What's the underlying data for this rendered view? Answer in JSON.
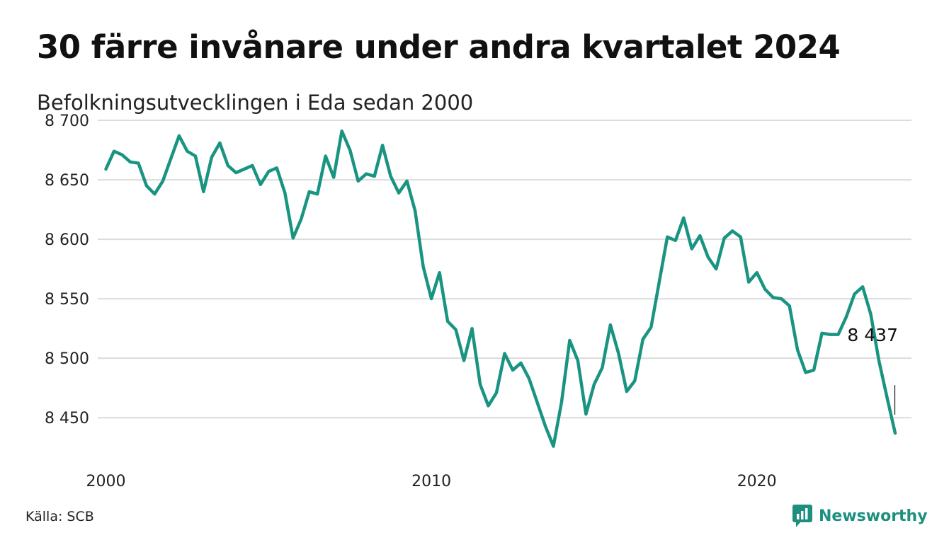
{
  "title": "30 färre invånare under andra kvartalet 2024",
  "subtitle": "Befolkningsutvecklingen i Eda sedan 2000",
  "source": "Källa: SCB",
  "brand": {
    "name": "Newsworthy",
    "icon": "newsworthy-logo-icon",
    "color": "#1c8f7f"
  },
  "colors": {
    "line": "#1a9482",
    "grid": "#dcdcdc",
    "text": "#222222"
  },
  "chart_data": {
    "type": "line",
    "title": "30 färre invånare under andra kvartalet 2024",
    "subtitle": "Befolkningsutvecklingen i Eda sedan 2000",
    "x_unit": "year",
    "x_ticks": [
      2000,
      2010,
      2020
    ],
    "x_tick_labels": [
      "2000",
      "2010",
      "2020"
    ],
    "y_ticks": [
      8450,
      8500,
      8550,
      8600,
      8650,
      8700
    ],
    "y_tick_labels": [
      "8 450",
      "8 500",
      "8 550",
      "8 600",
      "8 650",
      "8 700"
    ],
    "ylim": [
      8418,
      8703
    ],
    "xlim": [
      1999.75,
      2024.75
    ],
    "grid": true,
    "end_label": "8 437",
    "series": [
      {
        "x": [
          2000.0,
          2000.25,
          2000.5,
          2000.75,
          2001.0,
          2001.25,
          2001.5,
          2001.75,
          2002.0,
          2002.25,
          2002.5,
          2002.75,
          2003.0,
          2003.25,
          2003.5,
          2003.75,
          2004.0,
          2004.25,
          2004.5,
          2004.75,
          2005.0,
          2005.25,
          2005.5,
          2005.75,
          2006.0,
          2006.25,
          2006.5,
          2006.75,
          2007.0,
          2007.25,
          2007.5,
          2007.75,
          2008.0,
          2008.25,
          2008.5,
          2008.75,
          2009.0,
          2009.25,
          2009.5,
          2009.75,
          2010.0,
          2010.25,
          2010.5,
          2010.75,
          2011.0,
          2011.25,
          2011.5,
          2011.75,
          2012.0,
          2012.25,
          2012.5,
          2012.75,
          2013.0,
          2013.25,
          2013.5,
          2013.75,
          2014.0,
          2014.25,
          2014.5,
          2014.75,
          2015.0,
          2015.25,
          2015.5,
          2015.75,
          2016.0,
          2016.25,
          2016.5,
          2016.75,
          2017.0,
          2017.25,
          2017.5,
          2017.75,
          2018.0,
          2018.25,
          2018.5,
          2018.75,
          2019.0,
          2019.25,
          2019.5,
          2019.75,
          2020.0,
          2020.25,
          2020.5,
          2020.75,
          2021.0,
          2021.25,
          2021.5,
          2021.75,
          2022.0,
          2022.25,
          2022.5,
          2022.75,
          2023.0,
          2023.25,
          2023.5,
          2023.75,
          2024.0,
          2024.25
        ],
        "y": [
          8659,
          8674,
          8671,
          8665,
          8664,
          8645,
          8638,
          8649,
          8668,
          8687,
          8674,
          8670,
          8640,
          8669,
          8681,
          8662,
          8656,
          8659,
          8662,
          8646,
          8657,
          8660,
          8639,
          8601,
          8617,
          8640,
          8638,
          8670,
          8652,
          8691,
          8675,
          8649,
          8655,
          8653,
          8679,
          8653,
          8639,
          8649,
          8624,
          8577,
          8550,
          8572,
          8531,
          8524,
          8498,
          8525,
          8478,
          8460,
          8471,
          8504,
          8490,
          8496,
          8483,
          8463,
          8443,
          8426,
          8463,
          8515,
          8498,
          8453,
          8478,
          8492,
          8528,
          8504,
          8472,
          8481,
          8516,
          8526,
          8564,
          8602,
          8599,
          8618,
          8592,
          8603,
          8585,
          8575,
          8601,
          8607,
          8602,
          8564,
          8572,
          8558,
          8551,
          8550,
          8544,
          8507,
          8488,
          8490,
          8521,
          8520,
          8520,
          8535,
          8554,
          8560,
          8537,
          8498,
          8467,
          8437
        ]
      }
    ]
  }
}
